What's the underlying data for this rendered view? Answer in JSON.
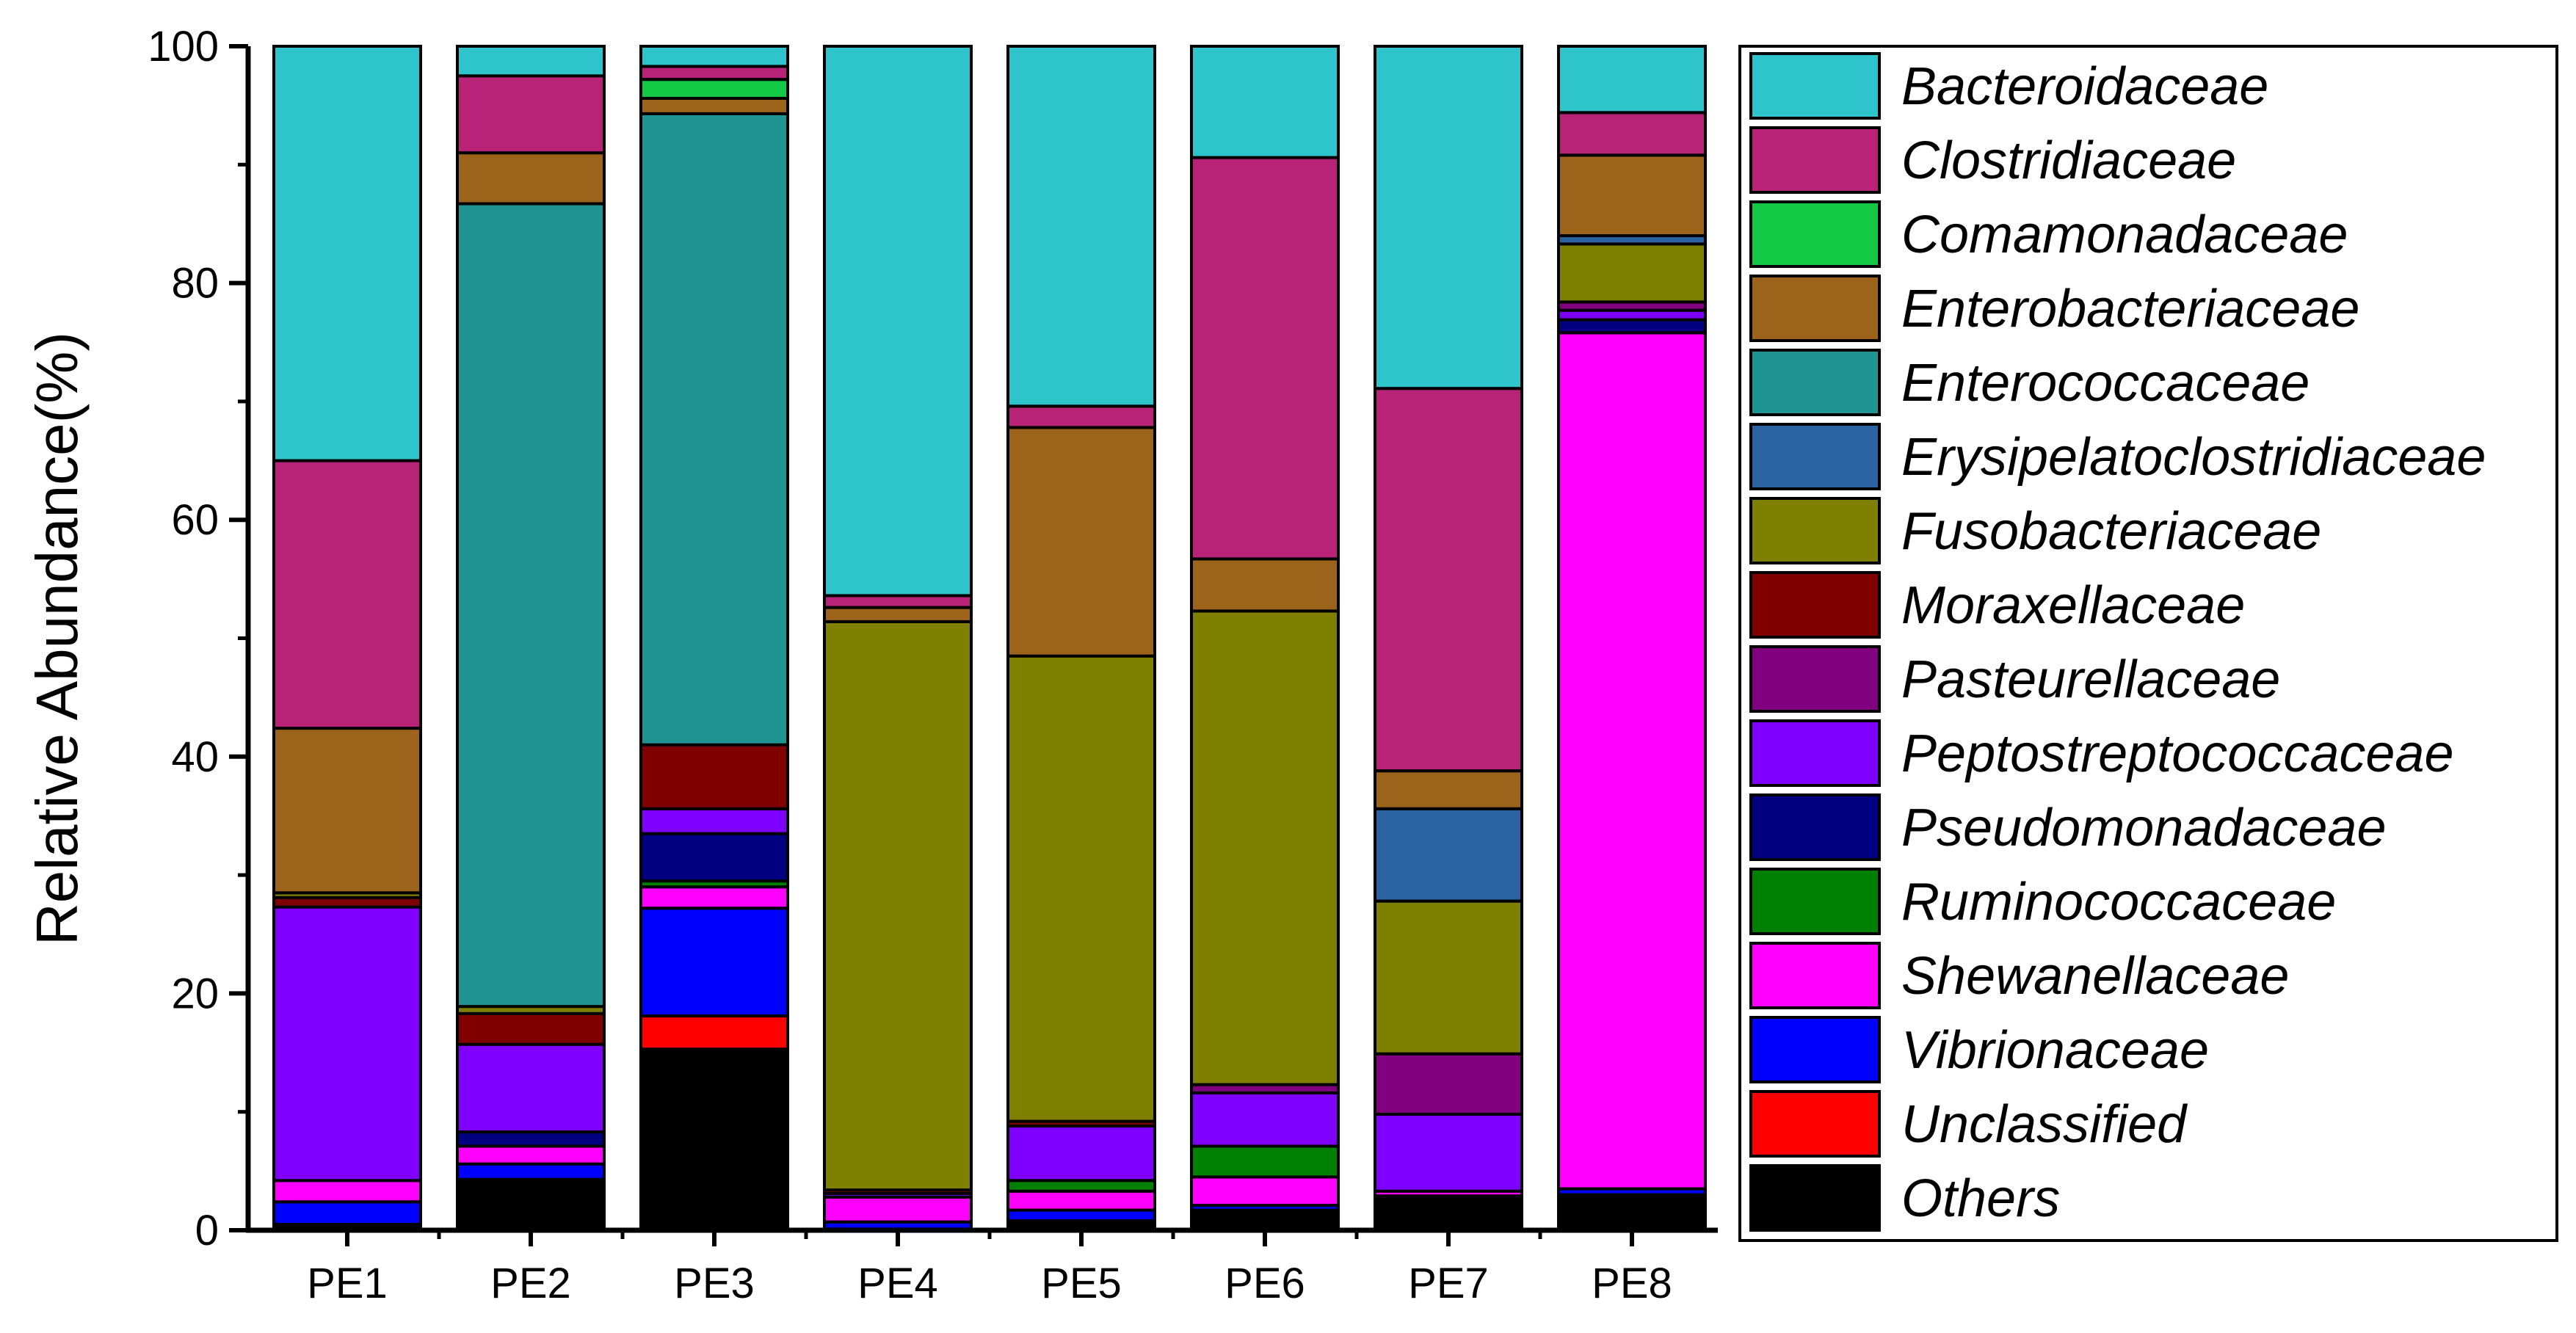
{
  "chart_data": {
    "type": "bar",
    "stacked": true,
    "title": "",
    "xlabel": "",
    "ylabel": "Relative Abundance(%)",
    "ylim": [
      0,
      100
    ],
    "yticks": [
      0,
      20,
      40,
      60,
      80,
      100
    ],
    "legend_position": "right",
    "categories": [
      "PE1",
      "PE2",
      "PE3",
      "PE4",
      "PE5",
      "PE6",
      "PE7",
      "PE8"
    ],
    "series": [
      {
        "name": "Others",
        "color": "#000000",
        "values": [
          0.5,
          4.3,
          15.3,
          0.1,
          0.8,
          1.7,
          2.9,
          3.0
        ]
      },
      {
        "name": "Unclassified",
        "color": "#FF0000",
        "values": [
          0,
          0,
          2.8,
          0,
          0,
          0,
          0,
          0
        ]
      },
      {
        "name": "Vibrionaceae",
        "color": "#0000FF",
        "values": [
          1.9,
          1.3,
          9.1,
          0.6,
          0.9,
          0.4,
          0,
          0.5
        ]
      },
      {
        "name": "Shewanellaceae",
        "color": "#FF00FF",
        "values": [
          1.8,
          1.5,
          1.8,
          2.1,
          1.6,
          2.4,
          0.4,
          72.3
        ]
      },
      {
        "name": "Ruminococcaceae",
        "color": "#008000",
        "values": [
          0,
          0,
          0.5,
          0,
          0.9,
          2.6,
          0,
          0
        ]
      },
      {
        "name": "Pseudomonadaceae",
        "color": "#000080",
        "values": [
          0,
          1.2,
          4.0,
          0,
          0,
          0,
          0,
          1.1
        ]
      },
      {
        "name": "Peptostreptococcaceae",
        "color": "#8000FF",
        "values": [
          23.1,
          7.4,
          2.1,
          0.3,
          4.6,
          4.5,
          6.5,
          0.8
        ]
      },
      {
        "name": "Pasteurellaceae",
        "color": "#800080",
        "values": [
          0,
          0,
          0,
          0,
          0,
          0.7,
          5.1,
          0.7
        ]
      },
      {
        "name": "Moraxellaceae",
        "color": "#800000",
        "values": [
          0.8,
          2.6,
          5.4,
          0.3,
          0.4,
          0,
          0,
          0
        ]
      },
      {
        "name": "Fusobacteriaceae",
        "color": "#808000",
        "values": [
          0.4,
          0.6,
          0,
          48.0,
          39.3,
          40.0,
          12.9,
          4.9
        ]
      },
      {
        "name": "Erysipelatoclostridiaceae",
        "color": "#2B62A1",
        "values": [
          0,
          0,
          0,
          0,
          0,
          0,
          7.8,
          0.7
        ]
      },
      {
        "name": "Enterococcaceae",
        "color": "#1F9593",
        "values": [
          0,
          67.8,
          53.3,
          0,
          0,
          0,
          0,
          0
        ]
      },
      {
        "name": "Enterobacteriaceae",
        "color": "#9C631B",
        "values": [
          13.9,
          4.3,
          1.3,
          1.2,
          19.3,
          4.4,
          3.2,
          6.8
        ]
      },
      {
        "name": "Comamonadaceae",
        "color": "#12C844",
        "values": [
          0,
          0,
          1.6,
          0,
          0,
          0,
          0,
          0
        ]
      },
      {
        "name": "Clostridiaceae",
        "color": "#B82378",
        "values": [
          22.6,
          6.5,
          1.1,
          1.0,
          1.8,
          33.9,
          32.3,
          3.6
        ]
      },
      {
        "name": "Bacteroidaceae",
        "color": "#2EC4CB",
        "values": [
          35.0,
          2.5,
          1.7,
          46.4,
          30.4,
          9.4,
          28.9,
          5.6
        ]
      }
    ],
    "legend_order": [
      "Bacteroidaceae",
      "Clostridiaceae",
      "Comamonadaceae",
      "Enterobacteriaceae",
      "Enterococcaceae",
      "Erysipelatoclostridiaceae",
      "Fusobacteriaceae",
      "Moraxellaceae",
      "Pasteurellaceae",
      "Peptostreptococcaceae",
      "Pseudomonadaceae",
      "Ruminococcaceae",
      "Shewanellaceae",
      "Vibrionaceae",
      "Unclassified",
      "Others"
    ]
  }
}
